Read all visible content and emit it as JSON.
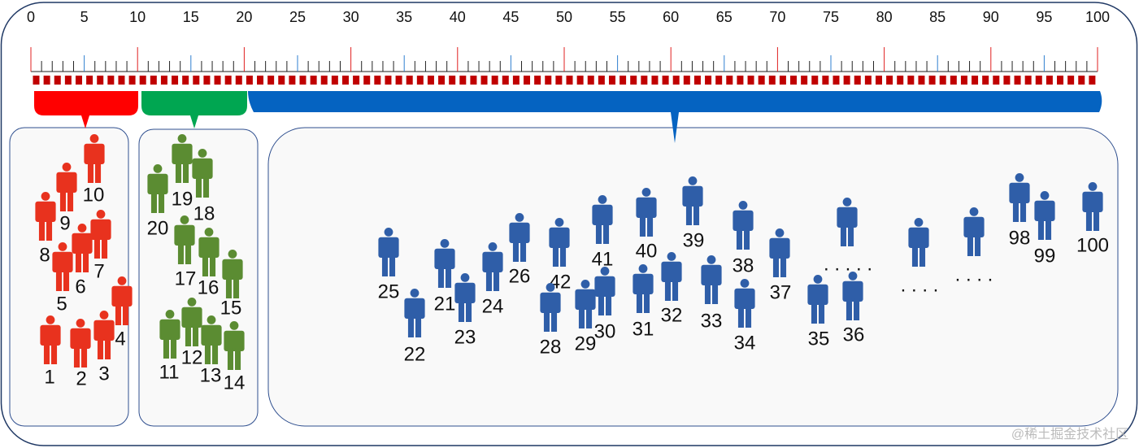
{
  "ruler": {
    "labels": [
      0,
      5,
      10,
      15,
      20,
      25,
      30,
      35,
      40,
      45,
      50,
      55,
      60,
      65,
      70,
      75,
      80,
      85,
      90,
      95,
      100
    ]
  },
  "groups": [
    {
      "people": [
        10,
        9,
        8,
        7,
        6,
        5,
        4,
        3,
        2,
        1
      ]
    },
    {
      "people": [
        20,
        19,
        18,
        17,
        16,
        15,
        11,
        12,
        13,
        14
      ]
    },
    {
      "people": [
        25,
        22,
        21,
        23,
        24,
        26,
        42,
        28,
        29,
        41,
        30,
        40,
        31,
        32,
        39,
        33,
        38,
        34,
        37,
        35,
        36,
        98,
        99,
        100
      ]
    }
  ],
  "ellipses": [
    ". . . . .",
    ". . . .",
    ". . . ."
  ],
  "watermark": "@稀土掘金技术社区"
}
